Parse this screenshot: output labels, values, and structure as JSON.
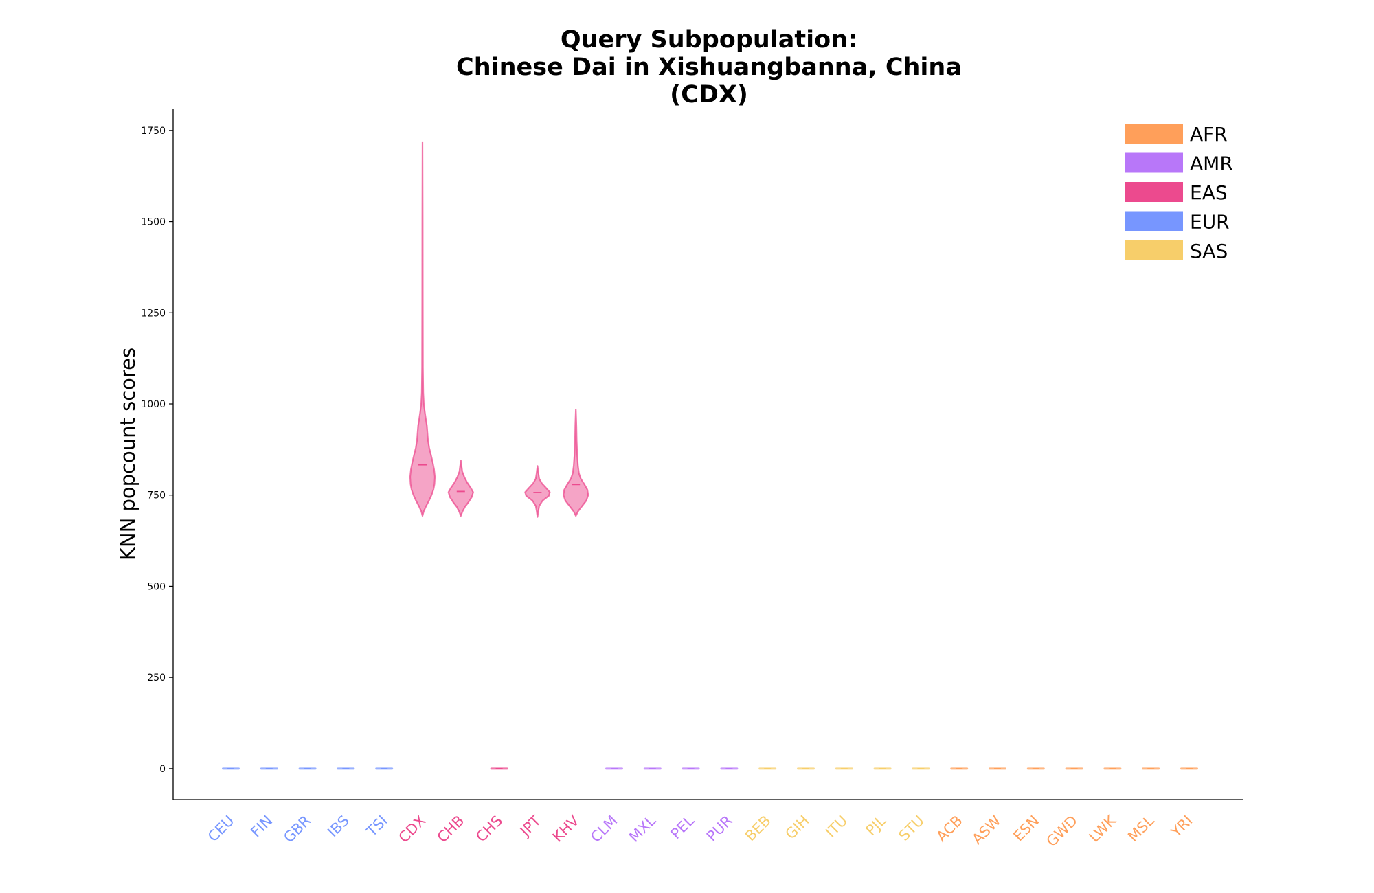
{
  "chart_data": {
    "type": "violin",
    "title": [
      "Query Subpopulation:",
      "Chinese Dai in Xishuangbanna, China",
      "(CDX)"
    ],
    "xlabel": "",
    "ylabel": "KNN popcount scores",
    "ylim": [
      -85,
      1810
    ],
    "yticks": [
      0,
      250,
      500,
      750,
      1000,
      1250,
      1500,
      1750
    ],
    "grid": false,
    "legend_position": "top-right",
    "superpopulations": [
      {
        "name": "AFR",
        "color": "#FF9F5A"
      },
      {
        "name": "AMR",
        "color": "#B877F9"
      },
      {
        "name": "EAS",
        "color": "#EC4A8E"
      },
      {
        "name": "EUR",
        "color": "#7796FF"
      },
      {
        "name": "SAS",
        "color": "#F7CE6A"
      }
    ],
    "categories": [
      {
        "label": "CEU",
        "group": "EUR",
        "median": 0,
        "min": 0,
        "max": 0
      },
      {
        "label": "FIN",
        "group": "EUR",
        "median": 0,
        "min": 0,
        "max": 0
      },
      {
        "label": "GBR",
        "group": "EUR",
        "median": 0,
        "min": 0,
        "max": 0
      },
      {
        "label": "IBS",
        "group": "EUR",
        "median": 0,
        "min": 0,
        "max": 0
      },
      {
        "label": "TSI",
        "group": "EUR",
        "median": 0,
        "min": 0,
        "max": 0
      },
      {
        "label": "CDX",
        "group": "EAS",
        "median": 833,
        "min": 693,
        "max": 1718,
        "profile": [
          [
            693,
            0
          ],
          [
            705,
            0.08
          ],
          [
            720,
            0.25
          ],
          [
            735,
            0.45
          ],
          [
            750,
            0.62
          ],
          [
            765,
            0.75
          ],
          [
            780,
            0.82
          ],
          [
            800,
            0.85
          ],
          [
            820,
            0.8
          ],
          [
            840,
            0.7
          ],
          [
            860,
            0.58
          ],
          [
            880,
            0.46
          ],
          [
            900,
            0.38
          ],
          [
            920,
            0.34
          ],
          [
            940,
            0.3
          ],
          [
            960,
            0.22
          ],
          [
            980,
            0.15
          ],
          [
            1000,
            0.09
          ],
          [
            1030,
            0.05
          ],
          [
            1100,
            0.03
          ],
          [
            1300,
            0.02
          ],
          [
            1500,
            0.015
          ],
          [
            1718,
            0
          ]
        ]
      },
      {
        "label": "CHB",
        "group": "EAS",
        "median": 760,
        "min": 693,
        "max": 845,
        "profile": [
          [
            693,
            0
          ],
          [
            705,
            0.12
          ],
          [
            718,
            0.3
          ],
          [
            730,
            0.55
          ],
          [
            745,
            0.8
          ],
          [
            758,
            0.9
          ],
          [
            770,
            0.72
          ],
          [
            785,
            0.45
          ],
          [
            800,
            0.25
          ],
          [
            815,
            0.1
          ],
          [
            830,
            0.05
          ],
          [
            845,
            0
          ]
        ]
      },
      {
        "label": "CHS",
        "group": "EAS",
        "median": 0,
        "min": 0,
        "max": 0
      },
      {
        "label": "JPT",
        "group": "EAS",
        "median": 757,
        "min": 690,
        "max": 830,
        "profile": [
          [
            690,
            0
          ],
          [
            705,
            0.05
          ],
          [
            720,
            0.12
          ],
          [
            735,
            0.35
          ],
          [
            748,
            0.78
          ],
          [
            758,
            0.85
          ],
          [
            770,
            0.58
          ],
          [
            782,
            0.3
          ],
          [
            795,
            0.12
          ],
          [
            810,
            0.06
          ],
          [
            830,
            0
          ]
        ]
      },
      {
        "label": "KHV",
        "group": "EAS",
        "median": 779,
        "min": 693,
        "max": 985,
        "profile": [
          [
            693,
            0
          ],
          [
            705,
            0.15
          ],
          [
            720,
            0.45
          ],
          [
            735,
            0.75
          ],
          [
            750,
            0.88
          ],
          [
            765,
            0.82
          ],
          [
            780,
            0.6
          ],
          [
            795,
            0.35
          ],
          [
            810,
            0.22
          ],
          [
            830,
            0.15
          ],
          [
            860,
            0.1
          ],
          [
            900,
            0.06
          ],
          [
            940,
            0.04
          ],
          [
            985,
            0
          ]
        ]
      },
      {
        "label": "CLM",
        "group": "AMR",
        "median": 0,
        "min": 0,
        "max": 0
      },
      {
        "label": "MXL",
        "group": "AMR",
        "median": 0,
        "min": 0,
        "max": 0
      },
      {
        "label": "PEL",
        "group": "AMR",
        "median": 0,
        "min": 0,
        "max": 0
      },
      {
        "label": "PUR",
        "group": "AMR",
        "median": 0,
        "min": 0,
        "max": 0
      },
      {
        "label": "BEB",
        "group": "SAS",
        "median": 0,
        "min": 0,
        "max": 0
      },
      {
        "label": "GIH",
        "group": "SAS",
        "median": 0,
        "min": 0,
        "max": 0
      },
      {
        "label": "ITU",
        "group": "SAS",
        "median": 0,
        "min": 0,
        "max": 0
      },
      {
        "label": "PJL",
        "group": "SAS",
        "median": 0,
        "min": 0,
        "max": 0
      },
      {
        "label": "STU",
        "group": "SAS",
        "median": 0,
        "min": 0,
        "max": 0
      },
      {
        "label": "ACB",
        "group": "AFR",
        "median": 0,
        "min": 0,
        "max": 0
      },
      {
        "label": "ASW",
        "group": "AFR",
        "median": 0,
        "min": 0,
        "max": 0
      },
      {
        "label": "ESN",
        "group": "AFR",
        "median": 0,
        "min": 0,
        "max": 0
      },
      {
        "label": "GWD",
        "group": "AFR",
        "median": 0,
        "min": 0,
        "max": 0
      },
      {
        "label": "LWK",
        "group": "AFR",
        "median": 0,
        "min": 0,
        "max": 0
      },
      {
        "label": "MSL",
        "group": "AFR",
        "median": 0,
        "min": 0,
        "max": 0
      },
      {
        "label": "YRI",
        "group": "AFR",
        "median": 0,
        "min": 0,
        "max": 0
      }
    ]
  }
}
